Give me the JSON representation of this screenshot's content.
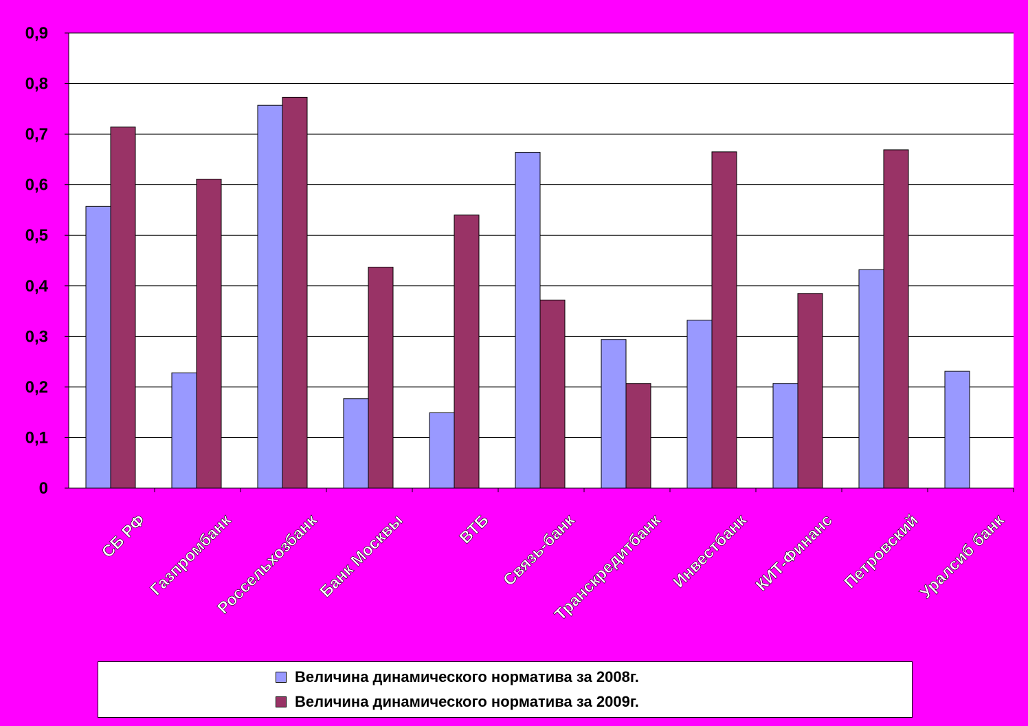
{
  "chart_data": {
    "type": "bar",
    "categories": [
      "СБ РФ",
      "Газпромбанк",
      "Россельхозбанк",
      "Банк Москвы",
      "ВТБ",
      "Связь-банк",
      "Транскредитбанк",
      "Инвестбанк",
      "КИТ-Финанс",
      "Петровский",
      "Уралсиб банк"
    ],
    "series": [
      {
        "name": "Величина динамического норматива за 2008г.",
        "color": "#9999FF",
        "values": [
          0.557,
          0.228,
          0.757,
          0.177,
          0.149,
          0.664,
          0.294,
          0.332,
          0.207,
          0.432,
          0.231
        ]
      },
      {
        "name": "Величина динамического норматива за 2009г.",
        "color": "#993366",
        "values": [
          0.714,
          0.611,
          0.773,
          0.437,
          0.54,
          0.372,
          0.207,
          0.665,
          0.385,
          0.669,
          null
        ]
      }
    ],
    "ylim": [
      0,
      0.9
    ],
    "yticks": [
      "0",
      "0,1",
      "0,2",
      "0,3",
      "0,4",
      "0,5",
      "0,6",
      "0,7",
      "0,8",
      "0,9"
    ],
    "grid": true,
    "legend_position": "bottom"
  }
}
